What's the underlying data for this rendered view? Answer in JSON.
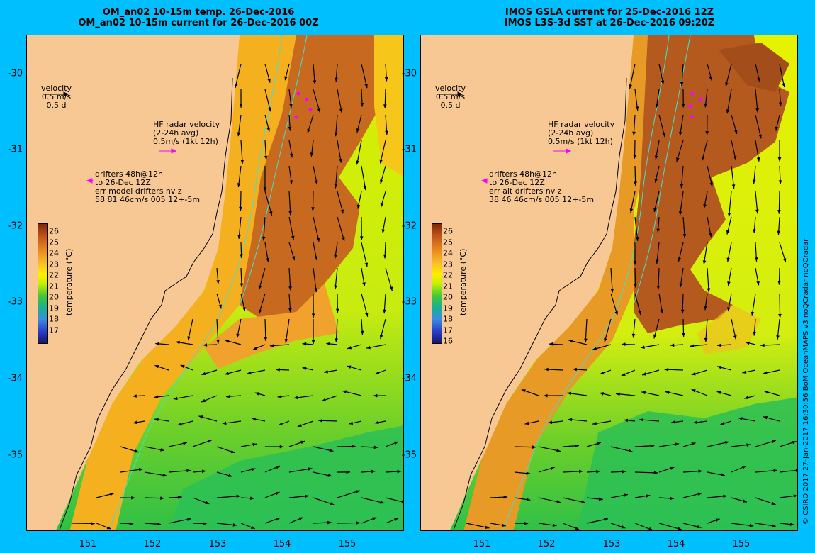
{
  "left_panel": {
    "title_line1": "OM_an02 10-15m temp. 26-Dec-2016",
    "title_line2": "OM_an02 10-15m current for 26-Dec-2016 00Z",
    "velocity": {
      "label": "velocity",
      "speed": "0.5 m/s",
      "time": "0.5 d"
    },
    "hf_radar": {
      "line1": "HF radar velocity",
      "line2": "(2-24h avg)",
      "line3": "0.5m/s (1kt 12h)"
    },
    "drifters": {
      "line1": "drifters 48h@12h",
      "line2": "to 26-Dec 12Z",
      "line3": "err model drifters nv z",
      "line4": "58 81 46cm/s 005 12+-5m"
    },
    "colorbar_ticks": [
      "26",
      "25",
      "24",
      "23",
      "22",
      "21",
      "20",
      "19",
      "18",
      "17"
    ],
    "colorbar_title": "temperature (°C)"
  },
  "right_panel": {
    "title_line1": "IMOS GSLA current for 25-Dec-2016 12Z",
    "title_line2": "IMOS L3S-3d SST at 26-Dec-2016 09:20Z",
    "velocity": {
      "label": "velocity",
      "speed": "0.5 m/s",
      "time": "0.5 d"
    },
    "hf_radar": {
      "line1": "HF radar velocity",
      "line2": "(2-24h avg)",
      "line3": "0.5m/s (1kt 12h)"
    },
    "drifters": {
      "line1": "drifters 48h@12h",
      "line2": "to 26-Dec 12Z",
      "line3": "err alt drifters nv z",
      "line4": "38 46 46cm/s 005 12+-5m"
    },
    "colorbar_ticks": [
      "26",
      "25",
      "24",
      "23",
      "22",
      "21",
      "20",
      "19",
      "18",
      "17",
      "16"
    ],
    "colorbar_title": "temperature (°C)"
  },
  "y_axis_ticks": [
    "-30",
    "-31",
    "-32",
    "-33",
    "-34",
    "-35"
  ],
  "x_axis_ticks": [
    "151",
    "152",
    "153",
    "154",
    "155"
  ],
  "credit": "© CSIRO 2017   27-Jan-2017 16:30:56 BoM OceanMAPS v3 noQCradar noQCradar",
  "colors": {
    "background": "#00bfff",
    "land": "#f7c894",
    "arrow": "#000000",
    "hf_radar": "#ff00ff",
    "isobath": "#40e0d0"
  }
}
